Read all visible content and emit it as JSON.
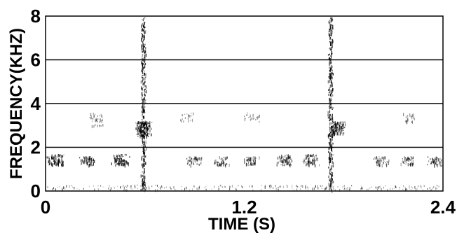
{
  "chart_data": {
    "type": "heatmap",
    "title": "",
    "xlabel": "TIME (S)",
    "ylabel": "FREQUENCY(KHZ)",
    "xlim": [
      0,
      2.4
    ],
    "ylim": [
      0,
      8
    ],
    "x_ticks": [
      "0",
      "1.2",
      "2.4"
    ],
    "y_ticks": [
      "0",
      "2",
      "4",
      "6",
      "8"
    ],
    "grid": "horizontal at 2, 4, 6 kHz",
    "colormap": "grayscale (black = high energy)",
    "events": [
      {
        "name": "band",
        "time_s": 0.06,
        "freq_khz": [
          1.2,
          1.7
        ],
        "intensity": 0.8
      },
      {
        "name": "band",
        "time_s": 0.25,
        "freq_khz": [
          1.2,
          1.6
        ],
        "intensity": 0.7
      },
      {
        "name": "band",
        "time_s": 0.45,
        "freq_khz": [
          1.2,
          1.7
        ],
        "intensity": 0.8
      },
      {
        "name": "band",
        "time_s": 0.89,
        "freq_khz": [
          1.2,
          1.6
        ],
        "intensity": 0.5
      },
      {
        "name": "band",
        "time_s": 1.06,
        "freq_khz": [
          1.2,
          1.6
        ],
        "intensity": 0.5
      },
      {
        "name": "band",
        "time_s": 1.24,
        "freq_khz": [
          1.2,
          1.6
        ],
        "intensity": 0.5
      },
      {
        "name": "band",
        "time_s": 1.44,
        "freq_khz": [
          1.2,
          1.7
        ],
        "intensity": 0.6
      },
      {
        "name": "band",
        "time_s": 1.6,
        "freq_khz": [
          1.2,
          1.7
        ],
        "intensity": 0.6
      },
      {
        "name": "band",
        "time_s": 2.02,
        "freq_khz": [
          1.2,
          1.6
        ],
        "intensity": 0.5
      },
      {
        "name": "band",
        "time_s": 2.19,
        "freq_khz": [
          1.2,
          1.6
        ],
        "intensity": 0.5
      },
      {
        "name": "band",
        "time_s": 2.35,
        "freq_khz": [
          1.2,
          1.6
        ],
        "intensity": 0.5
      },
      {
        "name": "broadband",
        "time_s": 0.59,
        "freq_khz": [
          0,
          8
        ],
        "intensity": 1.0
      },
      {
        "name": "broadband",
        "time_s": 1.72,
        "freq_khz": [
          0,
          8
        ],
        "intensity": 1.0
      },
      {
        "name": "formant",
        "time_s": 0.59,
        "freq_khz": [
          2.5,
          3.2
        ],
        "intensity": 0.9
      },
      {
        "name": "formant",
        "time_s": 1.76,
        "freq_khz": [
          2.6,
          3.2
        ],
        "intensity": 0.9
      },
      {
        "name": "faint",
        "time_s": 0.3,
        "freq_khz": [
          3.0,
          3.6
        ],
        "intensity": 0.25
      },
      {
        "name": "faint",
        "time_s": 0.85,
        "freq_khz": [
          3.2,
          3.6
        ],
        "intensity": 0.2
      },
      {
        "name": "faint",
        "time_s": 1.25,
        "freq_khz": [
          3.2,
          3.6
        ],
        "intensity": 0.2
      },
      {
        "name": "faint",
        "time_s": 2.2,
        "freq_khz": [
          3.2,
          3.6
        ],
        "intensity": 0.2
      }
    ]
  }
}
